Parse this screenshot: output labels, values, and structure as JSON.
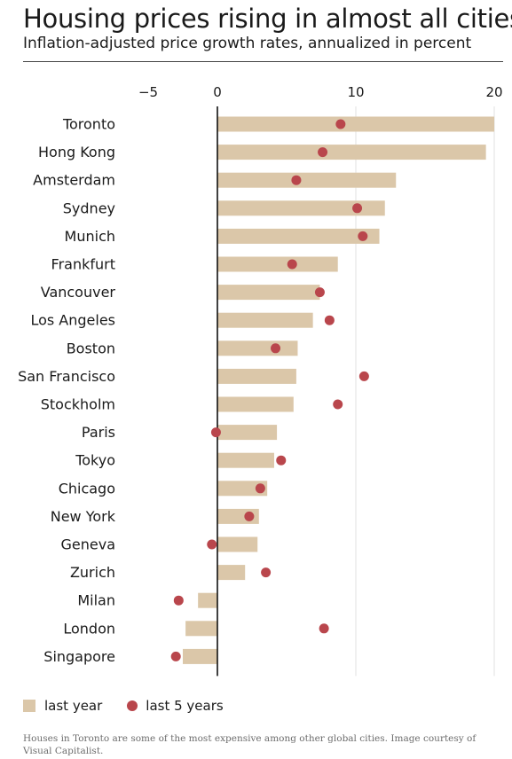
{
  "chart_data": {
    "type": "bar",
    "title": "Housing prices rising in almost all cities",
    "subtitle": "Inflation-adjusted price growth rates, annualized in percent",
    "xlim": [
      -5,
      20
    ],
    "xticks": [
      -5,
      0,
      10,
      20
    ],
    "xtick_labels": [
      "−5",
      "0",
      "10",
      "20"
    ],
    "categories": [
      "Toronto",
      "Hong Kong",
      "Amsterdam",
      "Sydney",
      "Munich",
      "Frankfurt",
      "Vancouver",
      "Los Angeles",
      "Boston",
      "San Francisco",
      "Stockholm",
      "Paris",
      "Tokyo",
      "Chicago",
      "New York",
      "Geneva",
      "Zurich",
      "Milan",
      "London",
      "Singapore"
    ],
    "series": [
      {
        "name": "last year",
        "mark": "bar",
        "color": "#dbc7a9",
        "values": [
          20.0,
          19.4,
          12.9,
          12.1,
          11.7,
          8.7,
          7.4,
          6.9,
          5.8,
          5.7,
          5.5,
          4.3,
          4.1,
          3.6,
          3.0,
          2.9,
          2.0,
          -1.4,
          -2.3,
          -2.5
        ]
      },
      {
        "name": "last 5 years",
        "mark": "dot",
        "color": "#b9464c",
        "values": [
          8.9,
          7.6,
          5.7,
          10.1,
          10.5,
          5.4,
          7.4,
          8.1,
          4.2,
          10.6,
          8.7,
          -0.1,
          4.6,
          3.1,
          2.3,
          -0.4,
          3.5,
          -2.8,
          7.7,
          -3.0
        ]
      }
    ],
    "legend": "bottom-left",
    "grid": "vertical at 10 and 20"
  },
  "legend": {
    "bar_label": "last year",
    "dot_label": "last 5 years"
  },
  "caption": "Houses in Toronto are some of the most expensive among other global cities. Image courtesy of Visual Capitalist."
}
